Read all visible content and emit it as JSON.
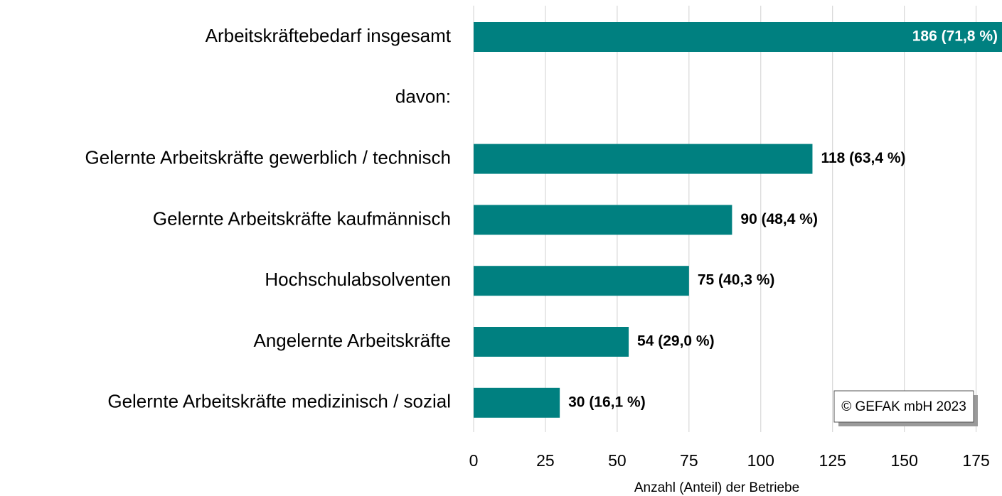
{
  "chart_data": {
    "type": "bar",
    "orientation": "horizontal",
    "categories": [
      "Arbeitskräftebedarf insgesamt",
      "davon:",
      "Gelernte Arbeitskräfte gewerblich / technisch",
      "Gelernte Arbeitskräfte kaufmännisch",
      "Hochschulabsolventen",
      "Angelernte Arbeitskräfte",
      "Gelernte Arbeitskräfte medizinisch / sozial"
    ],
    "values": [
      186,
      null,
      118,
      90,
      75,
      54,
      30
    ],
    "value_labels": [
      "186 (71,8 %)",
      null,
      "118 (63,4 %)",
      "90 (48,4 %)",
      "75 (40,3 %)",
      "54 (29,0 %)",
      "30 (16,1 %)"
    ],
    "color": "#008080",
    "xlim": [
      0,
      185
    ],
    "xticks": [
      0,
      25,
      50,
      75,
      100,
      125,
      150,
      175
    ],
    "grid": true,
    "xlabel": "Anzahl (Anteil) der Betriebe",
    "annotation": "© GEFAK mbH 2023"
  }
}
